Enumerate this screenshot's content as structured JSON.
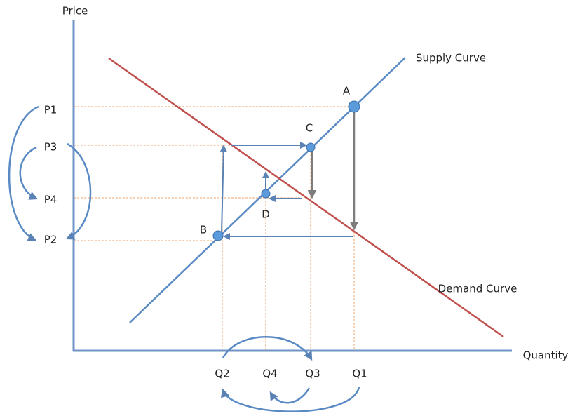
{
  "axes": {
    "y_label": "Price",
    "x_label": "Quantity"
  },
  "curves": {
    "supply": "Supply Curve",
    "demand": "Demand Curve"
  },
  "points": [
    "A",
    "C",
    "D",
    "B"
  ],
  "prices": [
    "P1",
    "P3",
    "P4",
    "P2"
  ],
  "quantities": [
    "Q2",
    "Q4",
    "Q3",
    "Q1"
  ]
}
